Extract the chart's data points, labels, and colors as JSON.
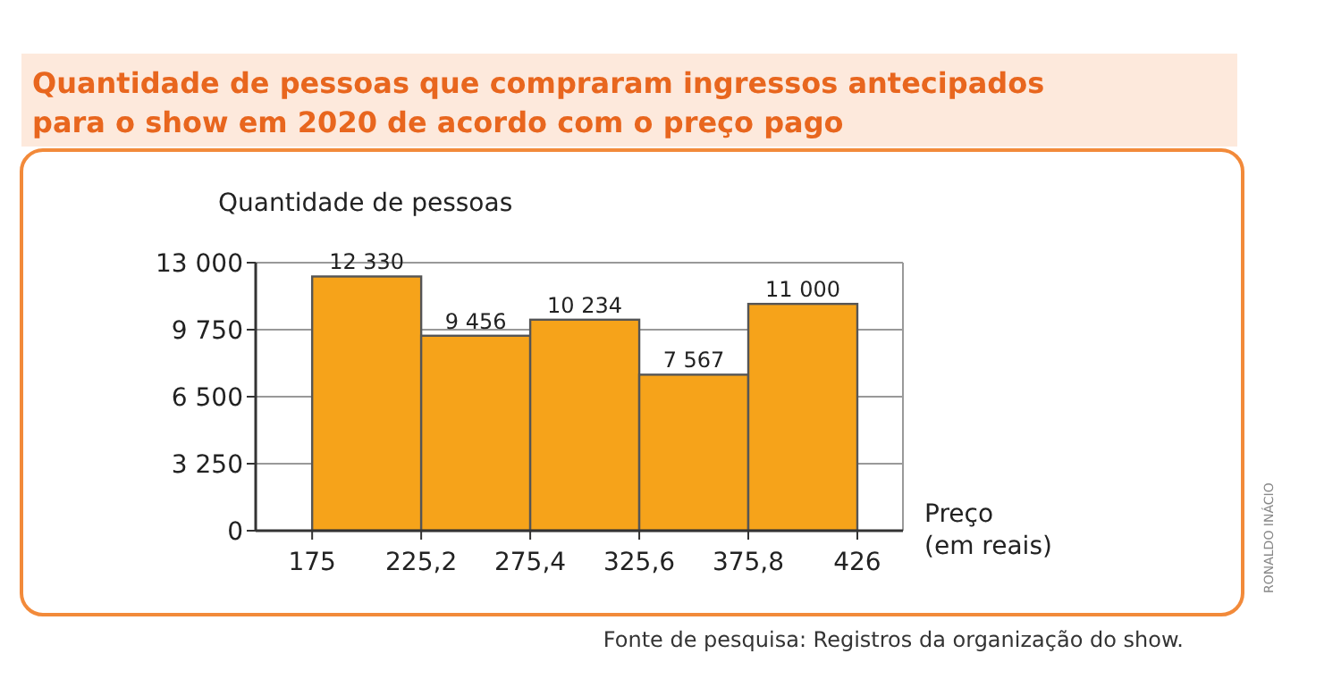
{
  "chart_data": {
    "type": "histogram",
    "title": "Quantidade de pessoas que compraram ingressos antecipados para o show em 2020 de acordo com o preço pago",
    "ylabel": "Quantidade de pessoas",
    "xlabel": "Preço (em reais)",
    "bins": [
      175,
      225.2,
      275.4,
      325.6,
      375.8,
      426
    ],
    "values": [
      12330,
      9456,
      10234,
      7567,
      11000
    ],
    "value_labels": [
      "12 330",
      "9 456",
      "10 234",
      "7 567",
      "11 000"
    ],
    "color": "#f6a31a",
    "xlim": [
      149,
      447
    ],
    "xticks": [
      175,
      {
        "value": 225.2,
        "label": "225,2"
      },
      {
        "value": 275.4,
        "label": "275,4"
      },
      {
        "value": 325.6,
        "label": "325,6"
      },
      {
        "value": 375.8,
        "label": "375,8"
      },
      426
    ],
    "ylim": [
      0,
      13000
    ],
    "yticks": [
      0,
      {
        "value": 3250,
        "label": "3 250"
      },
      {
        "value": 6500,
        "label": "6 500"
      },
      {
        "value": 9750,
        "label": "9 750"
      },
      {
        "value": 13000,
        "label": "13 000"
      }
    ],
    "grid": "y",
    "annotations": [
      "Fonte de pesquisa: Registros da organização do show.",
      "RONALDO INÁCIO"
    ]
  }
}
